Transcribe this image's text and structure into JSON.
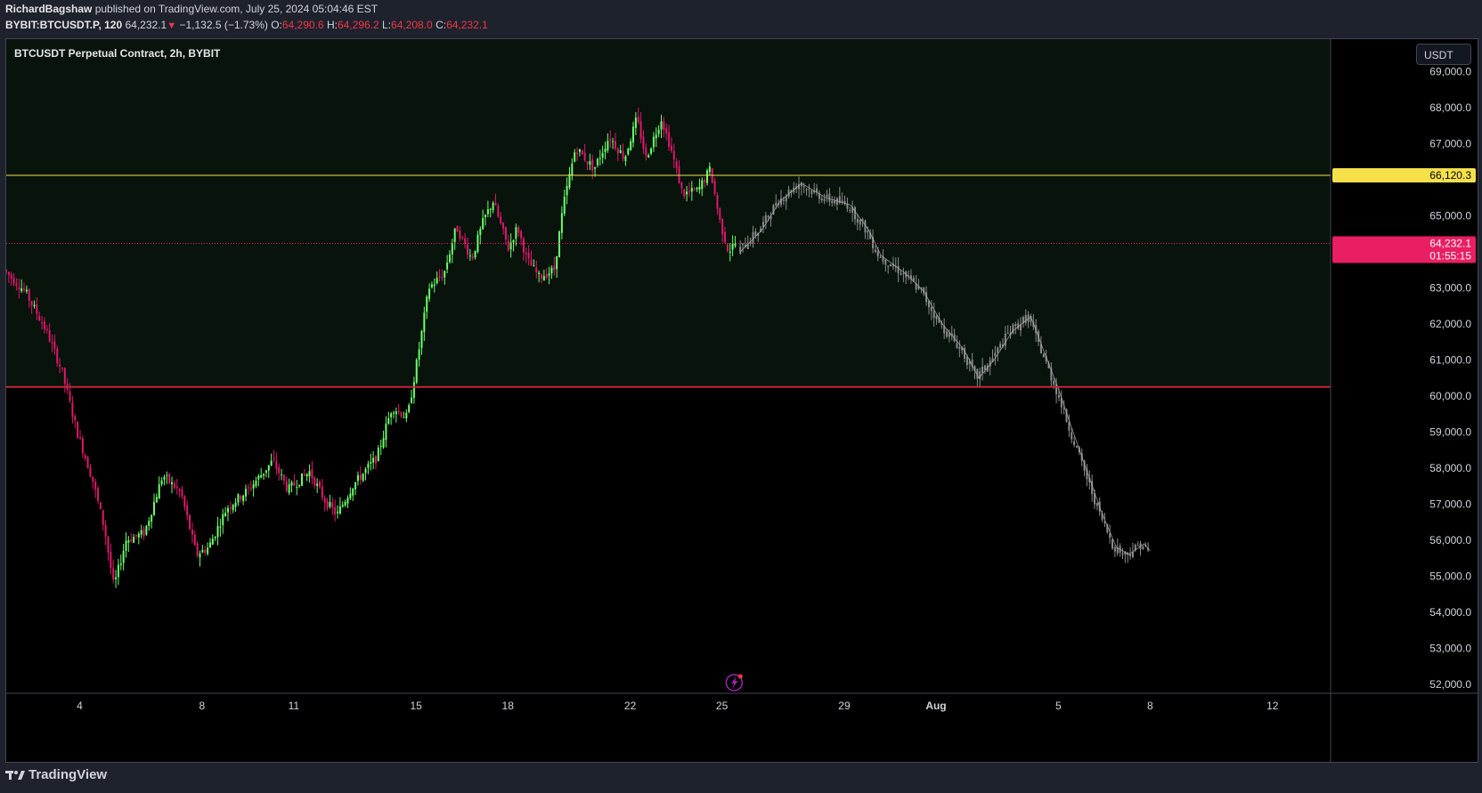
{
  "header": {
    "author": "RichardBagshaw",
    "published": "published on TradingView.com, July 25, 2024 05:04:46 EST",
    "symbol": "BYBIT:BTCUSDT.P, 120",
    "last": "64,232.1",
    "change_arrow": "▼",
    "change": "−1,132.5 (−1.73%)",
    "o_label": "O:",
    "o_value": "64,290.6",
    "h_label": "H:",
    "h_value": "64,296.2",
    "l_label": "L:",
    "l_value": "64,208.0",
    "c_label": "C:",
    "c_value": "64,232.1"
  },
  "chart_title": "BTCUSDT Perpetual Contract, 2h, BYBIT",
  "currency_button": "USDT",
  "footer_brand": "TradingView",
  "colors": {
    "bull": "#6bff6b",
    "bear": "#e0176b",
    "projection": "#8a8a8a",
    "resistance": "#f5e04a",
    "support": "#c1263a",
    "last_price": "#e91e63",
    "zone": "#07130b"
  },
  "chart_data": {
    "type": "candlestick",
    "title": "BTCUSDT Perpetual Contract, 2h, BYBIT",
    "y_ticks": [
      69000,
      68000,
      67000,
      66000,
      65000,
      64000,
      63000,
      62000,
      61000,
      60000,
      59000,
      58000,
      57000,
      56000,
      55000,
      54000,
      53000,
      52000
    ],
    "y_tick_labels": [
      "69,000.0",
      "68,000.0",
      "67,000.0",
      "",
      "65,000.0",
      "",
      "63,000.0",
      "62,000.0",
      "61,000.0",
      "60,000.0",
      "59,000.0",
      "58,000.0",
      "57,000.0",
      "56,000.0",
      "55,000.0",
      "54,000.0",
      "53,000.0",
      "52,000.0"
    ],
    "ylim": [
      51750,
      69900
    ],
    "x_ticks": [
      {
        "label": "4",
        "day": 4
      },
      {
        "label": "8",
        "day": 8
      },
      {
        "label": "11",
        "day": 11
      },
      {
        "label": "15",
        "day": 15
      },
      {
        "label": "18",
        "day": 18
      },
      {
        "label": "22",
        "day": 22
      },
      {
        "label": "25",
        "day": 25
      },
      {
        "label": "29",
        "day": 29
      },
      {
        "label": "Aug",
        "day": 32
      },
      {
        "label": "5",
        "day": 36
      },
      {
        "label": "8",
        "day": 39
      },
      {
        "label": "12",
        "day": 43
      }
    ],
    "xlim": [
      1.6,
      44.9
    ],
    "resistance_level": {
      "value": 66120.3,
      "label": "66,120.3"
    },
    "support_level": {
      "value": 60250
    },
    "last_price": {
      "value": 64232.1,
      "label": "64,232.1",
      "countdown": "01:55:15"
    },
    "actual_path": [
      [
        1.6,
        63500
      ],
      [
        2.3,
        62900
      ],
      [
        3.0,
        61800
      ],
      [
        3.5,
        60700
      ],
      [
        4.0,
        59000
      ],
      [
        4.5,
        57700
      ],
      [
        4.9,
        56300
      ],
      [
        5.2,
        54700
      ],
      [
        5.6,
        56000
      ],
      [
        6.2,
        56200
      ],
      [
        6.8,
        57800
      ],
      [
        7.4,
        57300
      ],
      [
        7.9,
        55600
      ],
      [
        8.3,
        55800
      ],
      [
        8.9,
        56900
      ],
      [
        9.6,
        57400
      ],
      [
        10.1,
        57900
      ],
      [
        10.4,
        58200
      ],
      [
        10.9,
        57400
      ],
      [
        11.6,
        57900
      ],
      [
        12.1,
        57100
      ],
      [
        12.5,
        56700
      ],
      [
        13.0,
        57500
      ],
      [
        13.8,
        58300
      ],
      [
        14.3,
        59700
      ],
      [
        14.8,
        59400
      ],
      [
        15.2,
        61400
      ],
      [
        15.5,
        63000
      ],
      [
        16.0,
        63400
      ],
      [
        16.4,
        64700
      ],
      [
        16.9,
        63800
      ],
      [
        17.3,
        64900
      ],
      [
        17.6,
        65400
      ],
      [
        18.1,
        64100
      ],
      [
        18.4,
        64700
      ],
      [
        18.7,
        63800
      ],
      [
        19.1,
        63300
      ],
      [
        19.6,
        63500
      ],
      [
        19.9,
        65300
      ],
      [
        20.3,
        66900
      ],
      [
        20.9,
        66300
      ],
      [
        21.4,
        67200
      ],
      [
        21.9,
        66600
      ],
      [
        22.3,
        67700
      ],
      [
        22.6,
        66600
      ],
      [
        23.1,
        67700
      ],
      [
        23.4,
        66900
      ],
      [
        23.8,
        65600
      ],
      [
        24.3,
        65700
      ],
      [
        24.7,
        66300
      ],
      [
        25.0,
        64900
      ],
      [
        25.3,
        64000
      ],
      [
        25.5,
        64230
      ]
    ],
    "projection_path": [
      [
        25.6,
        64000
      ],
      [
        26.3,
        64600
      ],
      [
        26.9,
        65400
      ],
      [
        27.6,
        65900
      ],
      [
        28.4,
        65500
      ],
      [
        29.2,
        65300
      ],
      [
        29.8,
        64600
      ],
      [
        30.2,
        63900
      ],
      [
        31.0,
        63400
      ],
      [
        31.6,
        62900
      ],
      [
        32.2,
        62000
      ],
      [
        32.9,
        61300
      ],
      [
        33.4,
        60500
      ],
      [
        33.9,
        61000
      ],
      [
        34.5,
        61800
      ],
      [
        35.1,
        62200
      ],
      [
        35.5,
        61300
      ],
      [
        36.0,
        60200
      ],
      [
        36.4,
        59200
      ],
      [
        36.9,
        58000
      ],
      [
        37.4,
        56800
      ],
      [
        37.9,
        55800
      ],
      [
        38.3,
        55600
      ],
      [
        38.8,
        55900
      ],
      [
        39.0,
        55700
      ]
    ]
  }
}
